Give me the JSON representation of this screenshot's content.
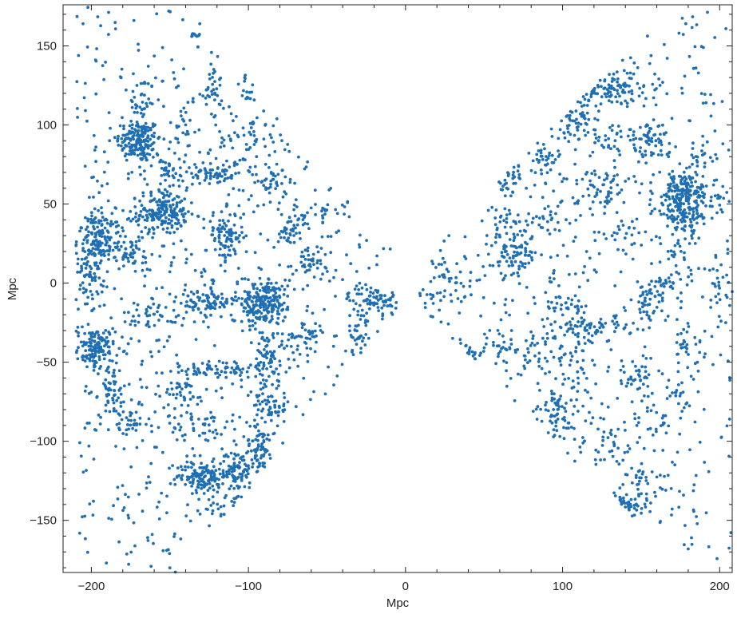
{
  "chart_data": {
    "type": "scatter",
    "title": "",
    "xlabel": "Mpc",
    "ylabel": "Mpc",
    "xlim": [
      -218,
      208
    ],
    "ylim": [
      -183,
      176
    ],
    "xticks": [
      -200,
      -100,
      0,
      100,
      200
    ],
    "xtick_labels": [
      "−200",
      "−100",
      "0",
      "100",
      "200"
    ],
    "yticks": [
      150,
      100,
      50,
      0,
      -50,
      -100,
      -150
    ],
    "ytick_labels": [
      "150",
      "100",
      "50",
      "0",
      "−50",
      "−100",
      "−150"
    ],
    "grid": false,
    "legend": "none",
    "marker_color": "#1f6fb4",
    "series": [
      {
        "clusters": [
          [
            -170,
            90,
            7,
            7,
            160
          ],
          [
            -168,
            112,
            4,
            10,
            40
          ],
          [
            -155,
            45,
            8,
            7,
            190
          ],
          [
            -195,
            28,
            7,
            9,
            130
          ],
          [
            -200,
            10,
            4,
            14,
            70
          ],
          [
            -197,
            -42,
            6,
            7,
            130
          ],
          [
            -187,
            -68,
            4,
            8,
            50
          ],
          [
            -175,
            -90,
            6,
            6,
            40
          ],
          [
            -130,
            -122,
            8,
            5,
            120
          ],
          [
            -108,
            -118,
            6,
            6,
            80
          ],
          [
            -93,
            -105,
            5,
            7,
            60
          ],
          [
            -88,
            -10,
            8,
            6,
            150
          ],
          [
            -122,
            -12,
            7,
            4,
            60
          ],
          [
            -95,
            -18,
            5,
            5,
            50
          ],
          [
            -115,
            30,
            6,
            8,
            90
          ],
          [
            -120,
            70,
            8,
            4,
            60
          ],
          [
            -85,
            62,
            5,
            5,
            35
          ],
          [
            -73,
            35,
            4,
            6,
            40
          ],
          [
            -88,
            -50,
            4,
            10,
            70
          ],
          [
            -85,
            -78,
            6,
            5,
            50
          ],
          [
            -78,
            -115,
            5,
            3,
            40
          ],
          [
            -20,
            -10,
            8,
            4,
            70
          ],
          [
            -30,
            -30,
            3,
            8,
            40
          ],
          [
            -120,
            -55,
            12,
            4,
            60
          ],
          [
            -65,
            -35,
            8,
            5,
            40
          ],
          [
            -100,
            -172,
            3,
            3,
            15
          ],
          [
            -133,
            157,
            2,
            1,
            10
          ],
          [
            -122,
            125,
            3,
            8,
            25
          ],
          [
            -135,
            -10,
            8,
            5,
            30
          ],
          [
            -160,
            -20,
            10,
            4,
            40
          ],
          [
            -60,
            12,
            8,
            6,
            40
          ],
          [
            -145,
            -70,
            10,
            6,
            40
          ],
          [
            -110,
            -140,
            10,
            6,
            40
          ],
          [
            -175,
            20,
            8,
            6,
            50
          ],
          [
            -100,
            90,
            10,
            8,
            40
          ],
          [
            -130,
            -90,
            10,
            6,
            40
          ],
          [
            -55,
            45,
            5,
            3,
            20
          ],
          [
            -45,
            -80,
            8,
            6,
            25
          ],
          [
            -100,
            120,
            5,
            5,
            15
          ],
          [
            -150,
            70,
            10,
            6,
            40
          ],
          [
            -140,
            100,
            8,
            10,
            30
          ],
          [
            112,
            120,
            10,
            5,
            90
          ],
          [
            135,
            122,
            10,
            5,
            60
          ],
          [
            178,
            58,
            10,
            6,
            150
          ],
          [
            178,
            44,
            10,
            5,
            100
          ],
          [
            155,
            90,
            8,
            5,
            60
          ],
          [
            90,
            130,
            10,
            8,
            50
          ],
          [
            133,
            162,
            6,
            4,
            30
          ],
          [
            70,
            18,
            7,
            7,
            80
          ],
          [
            65,
            70,
            6,
            6,
            50
          ],
          [
            88,
            80,
            6,
            5,
            40
          ],
          [
            105,
            100,
            8,
            6,
            40
          ],
          [
            125,
            92,
            8,
            6,
            30
          ],
          [
            120,
            -28,
            12,
            3,
            70
          ],
          [
            100,
            -15,
            8,
            5,
            40
          ],
          [
            155,
            -12,
            5,
            7,
            40
          ],
          [
            165,
            0,
            4,
            3,
            25
          ],
          [
            175,
            22,
            5,
            8,
            30
          ],
          [
            95,
            -80,
            6,
            10,
            60
          ],
          [
            143,
            -140,
            5,
            4,
            40
          ],
          [
            150,
            -60,
            6,
            5,
            30
          ],
          [
            180,
            -40,
            5,
            6,
            25
          ],
          [
            40,
            -45,
            5,
            3,
            25
          ],
          [
            60,
            -40,
            6,
            6,
            25
          ],
          [
            30,
            5,
            6,
            8,
            25
          ],
          [
            20,
            -10,
            8,
            6,
            20
          ],
          [
            130,
            -100,
            6,
            8,
            25
          ],
          [
            160,
            -90,
            8,
            6,
            25
          ],
          [
            80,
            -45,
            5,
            8,
            25
          ],
          [
            110,
            -60,
            5,
            8,
            20
          ],
          [
            120,
            60,
            10,
            5,
            30
          ],
          [
            90,
            40,
            12,
            5,
            30
          ],
          [
            140,
            30,
            8,
            5,
            20
          ],
          [
            190,
            80,
            6,
            6,
            20
          ],
          [
            200,
            -10,
            4,
            10,
            20
          ],
          [
            60,
            40,
            5,
            8,
            25
          ],
          [
            150,
            -125,
            5,
            5,
            20
          ],
          [
            105,
            -45,
            6,
            5,
            20
          ],
          [
            130,
            60,
            8,
            10,
            25
          ],
          [
            175,
            -70,
            6,
            8,
            20
          ]
        ]
      }
    ]
  }
}
